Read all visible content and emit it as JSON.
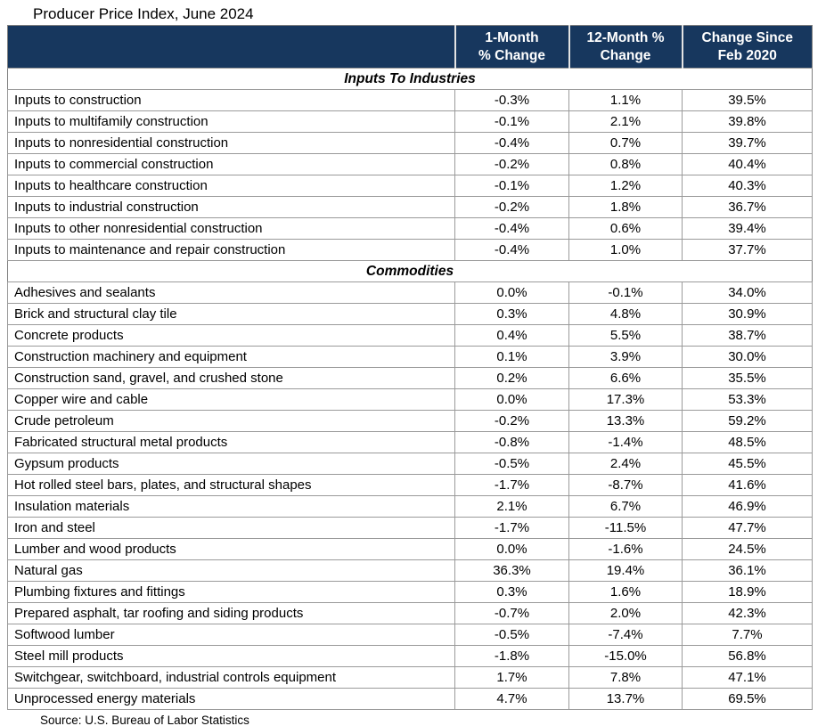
{
  "title": "Producer Price Index, June 2024",
  "source": "Source: U.S. Bureau of Labor Statistics",
  "colors": {
    "header_bg": "#17375e",
    "header_text": "#ffffff",
    "grid_line": "#9a9a9a",
    "outer_border": "#7f7f7f"
  },
  "table_header": {
    "corner": "",
    "col1_display": "1-Month\n% Change",
    "col2_display": "12-Month %\nChange",
    "col3_display": "Change Since\nFeb 2020"
  },
  "chart_data": {
    "type": "table",
    "title": "Producer Price Index, June 2024",
    "source": "Source: U.S. Bureau of Labor Statistics",
    "columns": [
      "1-Month % Change",
      "12-Month % Change",
      "Change Since Feb 2020"
    ],
    "sections": [
      {
        "header": "Inputs To Industries",
        "rows": [
          {
            "label": "Inputs to construction",
            "values": [
              "-0.3%",
              "1.1%",
              "39.5%"
            ]
          },
          {
            "label": "Inputs to multifamily construction",
            "values": [
              "-0.1%",
              "2.1%",
              "39.8%"
            ]
          },
          {
            "label": "Inputs to nonresidential construction",
            "values": [
              "-0.4%",
              "0.7%",
              "39.7%"
            ]
          },
          {
            "label": "Inputs to commercial construction",
            "values": [
              "-0.2%",
              "0.8%",
              "40.4%"
            ]
          },
          {
            "label": "Inputs to healthcare construction",
            "values": [
              "-0.1%",
              "1.2%",
              "40.3%"
            ]
          },
          {
            "label": "Inputs to industrial construction",
            "values": [
              "-0.2%",
              "1.8%",
              "36.7%"
            ]
          },
          {
            "label": "Inputs to other nonresidential construction",
            "values": [
              "-0.4%",
              "0.6%",
              "39.4%"
            ]
          },
          {
            "label": "Inputs to maintenance and repair construction",
            "values": [
              "-0.4%",
              "1.0%",
              "37.7%"
            ]
          }
        ]
      },
      {
        "header": "Commodities",
        "rows": [
          {
            "label": "Adhesives and sealants",
            "values": [
              "0.0%",
              "-0.1%",
              "34.0%"
            ]
          },
          {
            "label": "Brick and structural clay tile",
            "values": [
              "0.3%",
              "4.8%",
              "30.9%"
            ]
          },
          {
            "label": "Concrete products",
            "values": [
              "0.4%",
              "5.5%",
              "38.7%"
            ]
          },
          {
            "label": "Construction machinery and equipment",
            "values": [
              "0.1%",
              "3.9%",
              "30.0%"
            ]
          },
          {
            "label": "Construction sand, gravel, and crushed stone",
            "values": [
              "0.2%",
              "6.6%",
              "35.5%"
            ]
          },
          {
            "label": "Copper wire and cable",
            "values": [
              "0.0%",
              "17.3%",
              "53.3%"
            ]
          },
          {
            "label": "Crude petroleum",
            "values": [
              "-0.2%",
              "13.3%",
              "59.2%"
            ]
          },
          {
            "label": "Fabricated structural metal products",
            "values": [
              "-0.8%",
              "-1.4%",
              "48.5%"
            ]
          },
          {
            "label": "Gypsum products",
            "values": [
              "-0.5%",
              "2.4%",
              "45.5%"
            ]
          },
          {
            "label": "Hot rolled steel bars, plates, and structural shapes",
            "values": [
              "-1.7%",
              "-8.7%",
              "41.6%"
            ]
          },
          {
            "label": "Insulation materials",
            "values": [
              "2.1%",
              "6.7%",
              "46.9%"
            ]
          },
          {
            "label": "Iron and steel",
            "values": [
              "-1.7%",
              "-11.5%",
              "47.7%"
            ]
          },
          {
            "label": "Lumber and wood products",
            "values": [
              "0.0%",
              "-1.6%",
              "24.5%"
            ]
          },
          {
            "label": "Natural gas",
            "values": [
              "36.3%",
              "19.4%",
              "36.1%"
            ]
          },
          {
            "label": "Plumbing fixtures and fittings",
            "values": [
              "0.3%",
              "1.6%",
              "18.9%"
            ]
          },
          {
            "label": "Prepared asphalt, tar roofing and siding products",
            "values": [
              "-0.7%",
              "2.0%",
              "42.3%"
            ]
          },
          {
            "label": "Softwood lumber",
            "values": [
              "-0.5%",
              "-7.4%",
              "7.7%"
            ]
          },
          {
            "label": "Steel mill products",
            "values": [
              "-1.8%",
              "-15.0%",
              "56.8%"
            ]
          },
          {
            "label": "Switchgear, switchboard, industrial controls equipment",
            "values": [
              "1.7%",
              "7.8%",
              "47.1%"
            ]
          },
          {
            "label": "Unprocessed energy materials",
            "values": [
              "4.7%",
              "13.7%",
              "69.5%"
            ]
          }
        ]
      }
    ]
  }
}
